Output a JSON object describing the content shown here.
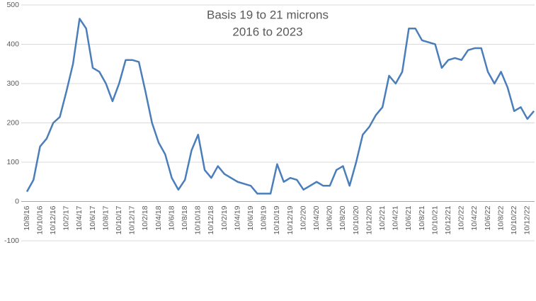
{
  "chart_data": {
    "type": "line",
    "title": [
      "Basis 19 to 21 microns",
      "2016 to 2023"
    ],
    "categories": [
      "10/8/16",
      null,
      "10/10/16",
      null,
      "10/12/16",
      null,
      "10/2/17",
      null,
      "10/4/17",
      null,
      "10/6/17",
      null,
      "10/8/17",
      null,
      "10/10/17",
      null,
      "10/12/17",
      null,
      "10/2/18",
      null,
      "10/4/18",
      null,
      "10/6/18",
      null,
      "10/8/18",
      null,
      "10/10/18",
      null,
      "10/12/18",
      null,
      "10/2/19",
      null,
      "10/4/19",
      null,
      "10/6/19",
      null,
      "10/8/19",
      null,
      "10/10/19",
      null,
      "10/12/19",
      null,
      "10/2/20",
      null,
      "10/4/20",
      null,
      "10/6/20",
      null,
      "10/8/20",
      null,
      "10/10/20",
      null,
      "10/12/20",
      null,
      "10/2/21",
      null,
      "10/4/21",
      null,
      "10/6/21",
      null,
      "10/8/21",
      null,
      "10/10/21",
      null,
      "10/12/21",
      null,
      "10/2/22",
      null,
      "10/4/22",
      null,
      "10/6/22",
      null,
      "10/8/22",
      null,
      "10/10/22",
      null,
      "10/12/22",
      null
    ],
    "series": [
      {
        "color": "#4a7ebb",
        "values": [
          25,
          55,
          140,
          160,
          200,
          215,
          280,
          350,
          465,
          440,
          340,
          330,
          300,
          255,
          300,
          360,
          360,
          355,
          280,
          200,
          150,
          120,
          60,
          30,
          55,
          130,
          170,
          80,
          60,
          90,
          70,
          60,
          50,
          45,
          40,
          20,
          20,
          20,
          95,
          50,
          60,
          55,
          30,
          40,
          50,
          40,
          40,
          80,
          90,
          40,
          100,
          170,
          190,
          220,
          240,
          320,
          300,
          330,
          440,
          440,
          410,
          405,
          400,
          340,
          360,
          365,
          360,
          385,
          390,
          390,
          330,
          300,
          330,
          290,
          230,
          240,
          210,
          230
        ]
      }
    ],
    "ylim": [
      -100,
      500
    ],
    "yticks": [
      -100,
      0,
      100,
      200,
      300,
      400,
      500
    ],
    "grid": true
  }
}
